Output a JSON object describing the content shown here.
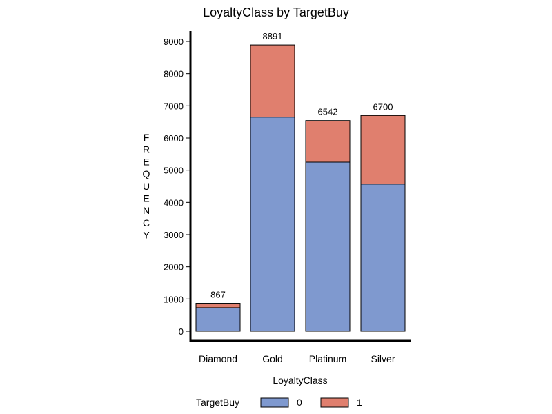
{
  "chart_data": {
    "type": "bar",
    "stacked": true,
    "title": "LoyaltyClass by TargetBuy",
    "xlabel": "LoyaltyClass",
    "ylabel": "FREQUENCY",
    "ylim": [
      0,
      9000
    ],
    "yticks": [
      0,
      1000,
      2000,
      3000,
      4000,
      5000,
      6000,
      7000,
      8000,
      9000
    ],
    "categories": [
      "Diamond",
      "Gold",
      "Platinum",
      "Silver"
    ],
    "series": [
      {
        "name": "0",
        "color": "#7f99cf",
        "values": [
          730,
          6650,
          5250,
          4570
        ]
      },
      {
        "name": "1",
        "color": "#e07f6e",
        "values": [
          137,
          2241,
          1292,
          2130
        ]
      }
    ],
    "totals": [
      "867",
      "8891",
      "6542",
      "6700"
    ],
    "legend": {
      "title": "TargetBuy",
      "placement": "bottom"
    },
    "grid": false
  }
}
